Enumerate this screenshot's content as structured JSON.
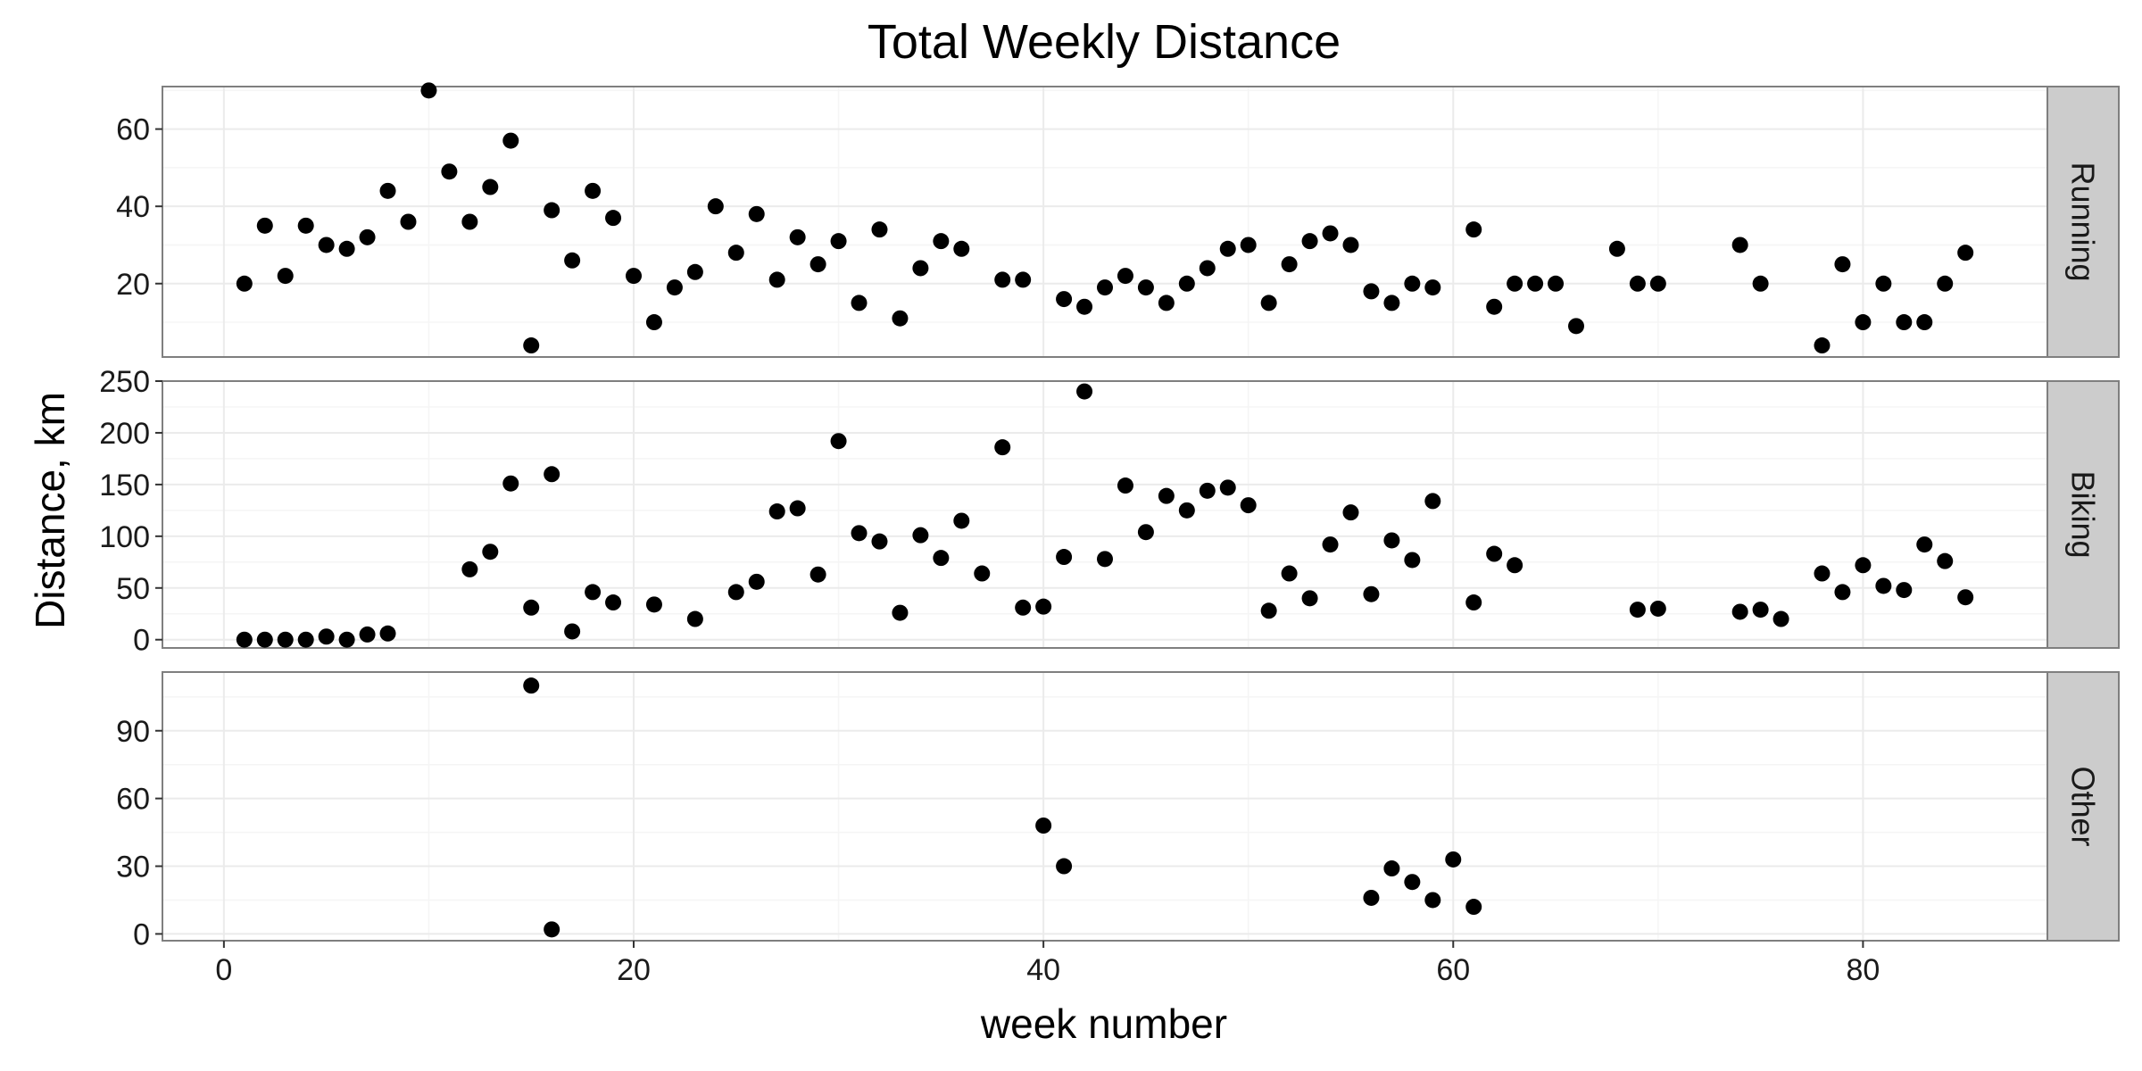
{
  "chart_data": {
    "type": "scatter",
    "title": "Total Weekly Distance",
    "xlabel": "week number",
    "ylabel": "Distance, km",
    "xlim": [
      -3,
      89
    ],
    "xticks": [
      0,
      20,
      40,
      60,
      80
    ],
    "grid": true,
    "facets": [
      {
        "name": "Running",
        "ylim": [
          1,
          71
        ],
        "yticks": [
          20,
          40,
          60
        ],
        "points": [
          [
            1,
            20
          ],
          [
            2,
            35
          ],
          [
            3,
            22
          ],
          [
            4,
            35
          ],
          [
            5,
            30
          ],
          [
            6,
            29
          ],
          [
            7,
            32
          ],
          [
            8,
            44
          ],
          [
            9,
            36
          ],
          [
            10,
            70
          ],
          [
            11,
            49
          ],
          [
            12,
            36
          ],
          [
            13,
            45
          ],
          [
            14,
            57
          ],
          [
            15,
            4
          ],
          [
            16,
            39
          ],
          [
            17,
            26
          ],
          [
            18,
            44
          ],
          [
            19,
            37
          ],
          [
            20,
            22
          ],
          [
            21,
            10
          ],
          [
            22,
            19
          ],
          [
            23,
            23
          ],
          [
            24,
            40
          ],
          [
            25,
            28
          ],
          [
            26,
            38
          ],
          [
            27,
            21
          ],
          [
            28,
            32
          ],
          [
            29,
            25
          ],
          [
            30,
            31
          ],
          [
            31,
            15
          ],
          [
            32,
            34
          ],
          [
            33,
            11
          ],
          [
            34,
            24
          ],
          [
            35,
            31
          ],
          [
            36,
            29
          ],
          [
            38,
            21
          ],
          [
            39,
            21
          ],
          [
            41,
            16
          ],
          [
            42,
            14
          ],
          [
            43,
            19
          ],
          [
            44,
            22
          ],
          [
            45,
            19
          ],
          [
            46,
            15
          ],
          [
            47,
            20
          ],
          [
            48,
            24
          ],
          [
            49,
            29
          ],
          [
            50,
            30
          ],
          [
            51,
            15
          ],
          [
            52,
            25
          ],
          [
            53,
            31
          ],
          [
            54,
            33
          ],
          [
            55,
            30
          ],
          [
            56,
            18
          ],
          [
            57,
            15
          ],
          [
            58,
            20
          ],
          [
            59,
            19
          ],
          [
            61,
            34
          ],
          [
            62,
            14
          ],
          [
            63,
            20
          ],
          [
            64,
            20
          ],
          [
            65,
            20
          ],
          [
            66,
            9
          ],
          [
            68,
            29
          ],
          [
            69,
            20
          ],
          [
            70,
            20
          ],
          [
            74,
            30
          ],
          [
            75,
            20
          ],
          [
            78,
            4
          ],
          [
            79,
            25
          ],
          [
            80,
            10
          ],
          [
            81,
            20
          ],
          [
            82,
            10
          ],
          [
            83,
            10
          ],
          [
            84,
            20
          ],
          [
            85,
            28
          ]
        ]
      },
      {
        "name": "Biking",
        "ylim": [
          -8,
          250
        ],
        "yticks": [
          0,
          50,
          100,
          150,
          200,
          250
        ],
        "points": [
          [
            1,
            0
          ],
          [
            2,
            0
          ],
          [
            3,
            0
          ],
          [
            4,
            0
          ],
          [
            5,
            3
          ],
          [
            6,
            0
          ],
          [
            7,
            5
          ],
          [
            8,
            6
          ],
          [
            12,
            68
          ],
          [
            13,
            85
          ],
          [
            14,
            151
          ],
          [
            15,
            31
          ],
          [
            16,
            160
          ],
          [
            17,
            8
          ],
          [
            18,
            46
          ],
          [
            19,
            36
          ],
          [
            21,
            34
          ],
          [
            23,
            20
          ],
          [
            25,
            46
          ],
          [
            26,
            56
          ],
          [
            27,
            124
          ],
          [
            28,
            127
          ],
          [
            29,
            63
          ],
          [
            30,
            192
          ],
          [
            31,
            103
          ],
          [
            32,
            95
          ],
          [
            33,
            26
          ],
          [
            34,
            101
          ],
          [
            35,
            79
          ],
          [
            36,
            115
          ],
          [
            37,
            64
          ],
          [
            38,
            186
          ],
          [
            39,
            31
          ],
          [
            40,
            32
          ],
          [
            41,
            80
          ],
          [
            42,
            240
          ],
          [
            43,
            78
          ],
          [
            44,
            149
          ],
          [
            45,
            104
          ],
          [
            46,
            139
          ],
          [
            47,
            125
          ],
          [
            48,
            144
          ],
          [
            49,
            147
          ],
          [
            50,
            130
          ],
          [
            51,
            28
          ],
          [
            52,
            64
          ],
          [
            53,
            40
          ],
          [
            54,
            92
          ],
          [
            55,
            123
          ],
          [
            56,
            44
          ],
          [
            57,
            96
          ],
          [
            58,
            77
          ],
          [
            59,
            134
          ],
          [
            61,
            36
          ],
          [
            62,
            83
          ],
          [
            63,
            72
          ],
          [
            69,
            29
          ],
          [
            70,
            30
          ],
          [
            74,
            27
          ],
          [
            75,
            29
          ],
          [
            76,
            20
          ],
          [
            78,
            64
          ],
          [
            79,
            46
          ],
          [
            80,
            72
          ],
          [
            81,
            52
          ],
          [
            82,
            48
          ],
          [
            83,
            92
          ],
          [
            84,
            76
          ],
          [
            85,
            41
          ]
        ]
      },
      {
        "name": "Other",
        "ylim": [
          -3,
          116
        ],
        "yticks": [
          0,
          30,
          60,
          90
        ],
        "points": [
          [
            15,
            110
          ],
          [
            16,
            2
          ],
          [
            40,
            48
          ],
          [
            41,
            30
          ],
          [
            56,
            16
          ],
          [
            57,
            29
          ],
          [
            58,
            23
          ],
          [
            59,
            15
          ],
          [
            60,
            33
          ],
          [
            61,
            12
          ]
        ]
      }
    ]
  }
}
